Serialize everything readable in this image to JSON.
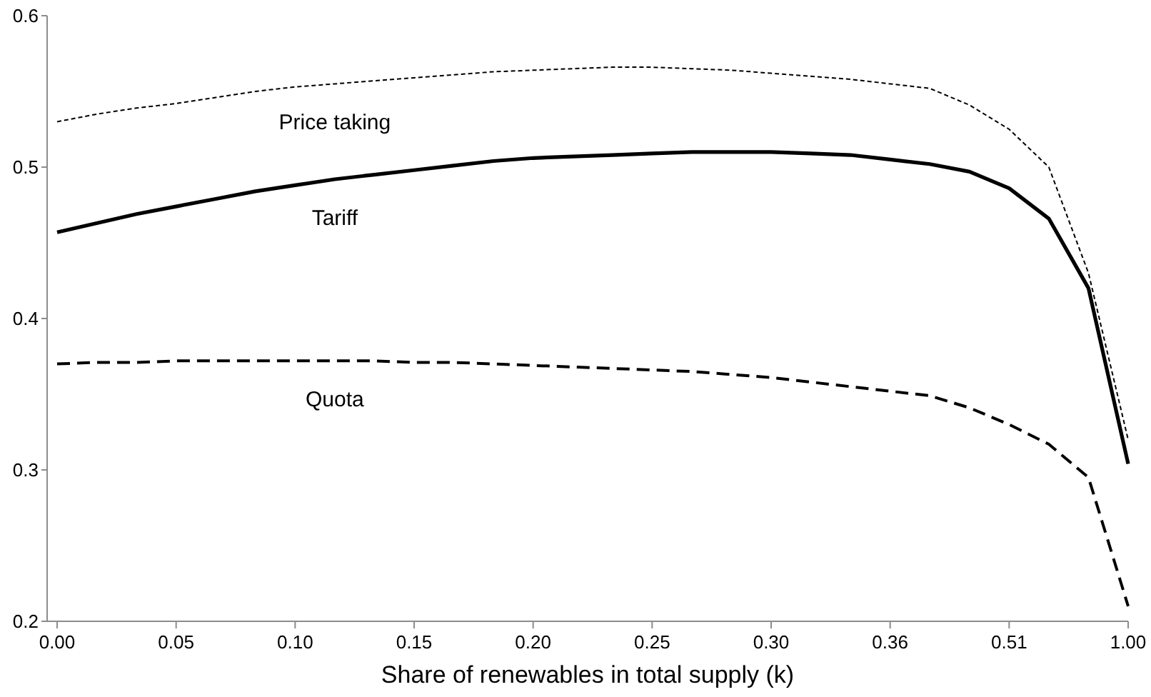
{
  "chart_data": {
    "type": "line",
    "xlabel": "Share of renewables in total supply (k)",
    "categories": [
      "0.00",
      null,
      null,
      "0.05",
      null,
      null,
      "0.10",
      null,
      null,
      "0.15",
      null,
      null,
      "0.20",
      null,
      null,
      "0.25",
      null,
      null,
      "0.30",
      null,
      null,
      "0.36",
      null,
      null,
      "0.51",
      null,
      null,
      "1.00"
    ],
    "ylim": [
      0.2,
      0.6
    ],
    "yticks": [
      0.2,
      0.3,
      0.4,
      0.5,
      0.6
    ],
    "grid": false,
    "marker": "none",
    "series": [
      {
        "name": "Price taking",
        "color": "#000000",
        "line_style": "dotted",
        "values": [
          0.53,
          0.535,
          0.539,
          0.542,
          0.546,
          0.55,
          0.553,
          0.555,
          0.557,
          0.559,
          0.561,
          0.563,
          0.564,
          0.565,
          0.566,
          0.566,
          0.565,
          0.564,
          0.562,
          0.56,
          0.558,
          0.555,
          0.552,
          0.541,
          0.525,
          0.5,
          0.43,
          0.32
        ]
      },
      {
        "name": "Tariff",
        "color": "#000000",
        "line_style": "solid",
        "values": [
          0.457,
          0.463,
          0.469,
          0.474,
          0.479,
          0.484,
          0.488,
          0.492,
          0.495,
          0.498,
          0.501,
          0.504,
          0.506,
          0.507,
          0.508,
          0.509,
          0.51,
          0.51,
          0.51,
          0.509,
          0.508,
          0.505,
          0.502,
          0.497,
          0.486,
          0.466,
          0.42,
          0.304
        ]
      },
      {
        "name": "Quota",
        "color": "#000000",
        "line_style": "dashed",
        "values": [
          0.37,
          0.371,
          0.371,
          0.372,
          0.372,
          0.372,
          0.372,
          0.372,
          0.372,
          0.371,
          0.371,
          0.37,
          0.369,
          0.368,
          0.367,
          0.366,
          0.365,
          0.363,
          0.361,
          0.358,
          0.355,
          0.352,
          0.349,
          0.341,
          0.33,
          0.317,
          0.295,
          0.21
        ]
      }
    ]
  }
}
